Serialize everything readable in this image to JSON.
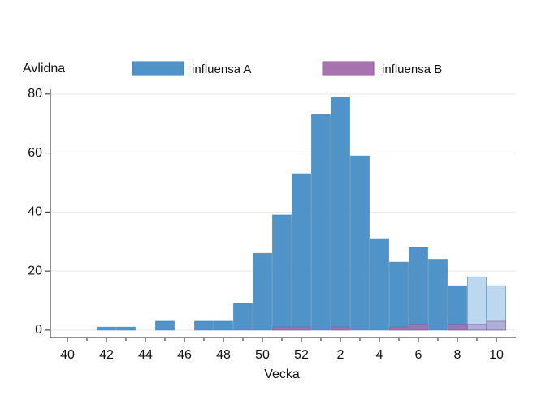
{
  "chart_data": {
    "type": "bar",
    "y_label": "Avlidna",
    "x_label": "Vecka",
    "categories": [
      40,
      null,
      42,
      null,
      44,
      null,
      46,
      null,
      48,
      null,
      50,
      null,
      52,
      null,
      2,
      null,
      4,
      null,
      6,
      null,
      8,
      null,
      10
    ],
    "series": [
      {
        "name": "influensa A",
        "color": "#4f93c8",
        "colors": [
          "#4f93c8",
          "#4f93c8",
          "#4f93c8",
          "#4f93c8",
          "#4f93c8",
          "#4f93c8",
          "#4f93c8",
          "#4f93c8",
          "#4f93c8",
          "#4f93c8",
          "#4f93c8",
          "#4f93c8",
          "#4f93c8",
          "#4f93c8",
          "#4f93c8",
          "#4f93c8",
          "#4f93c8",
          "#4f93c8",
          "#4f93c8",
          "#4f93c8",
          "#4f93c8",
          "#bcd7ef",
          "#bcd7ef"
        ],
        "values": [
          0,
          0,
          1,
          1,
          0,
          3,
          0,
          3,
          3,
          9,
          26,
          39,
          53,
          73,
          79,
          59,
          31,
          23,
          28,
          24,
          15,
          18,
          15
        ]
      },
      {
        "name": "influensa B",
        "color": "#a871b0",
        "colors": [
          "#a871b0",
          "#a871b0",
          "#a871b0",
          "#a871b0",
          "#a871b0",
          "#a871b0",
          "#a871b0",
          "#a871b0",
          "#a871b0",
          "#a871b0",
          "#a871b0",
          "#a871b0",
          "#a871b0",
          "#a871b0",
          "#a871b0",
          "#a871b0",
          "#a871b0",
          "#a871b0",
          "#a871b0",
          "#a871b0",
          "#a871b0",
          "#aaa7d6",
          "#aaa7d6"
        ],
        "values": [
          0,
          0,
          0,
          0,
          0,
          0,
          0,
          0,
          0,
          0,
          0,
          1,
          1,
          0,
          1,
          0,
          0,
          1,
          2,
          0,
          2,
          2,
          3
        ]
      }
    ],
    "ylim": [
      -2.5,
      81.6
    ],
    "yticks": [
      0,
      20,
      40,
      60,
      80
    ],
    "grid": true
  }
}
